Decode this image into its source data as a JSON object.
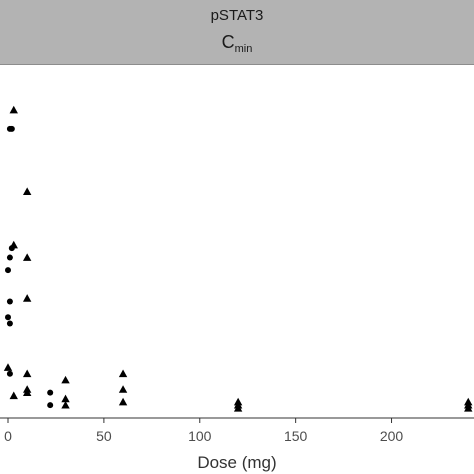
{
  "chart_data": {
    "type": "scatter",
    "strip": {
      "title": "pSTAT3",
      "subtitle_main": "C",
      "subtitle_sub": "min"
    },
    "xlabel": "Dose (mg)",
    "ylabel": "",
    "x_ticks": [
      0,
      50,
      100,
      150,
      200
    ],
    "xlim": [
      -2,
      240
    ],
    "ylim": [
      0,
      100
    ],
    "grid": false,
    "colors": {
      "strip_bg": "#b3b3b3",
      "marker": "#000000",
      "axis": "#333333"
    },
    "series": [
      {
        "marker": "triangle",
        "points": [
          {
            "x": 3,
            "y": 93
          },
          {
            "x": 10,
            "y": 67
          },
          {
            "x": 3,
            "y": 50
          },
          {
            "x": 10,
            "y": 46
          },
          {
            "x": 10,
            "y": 33
          },
          {
            "x": 0,
            "y": 11
          },
          {
            "x": 10,
            "y": 9
          },
          {
            "x": 30,
            "y": 7
          },
          {
            "x": 60,
            "y": 9
          },
          {
            "x": 3,
            "y": 2
          },
          {
            "x": 10,
            "y": 3
          },
          {
            "x": 10,
            "y": 4
          },
          {
            "x": 30,
            "y": 1
          },
          {
            "x": 30,
            "y": -1
          },
          {
            "x": 60,
            "y": 4
          },
          {
            "x": 60,
            "y": 0
          },
          {
            "x": 120,
            "y": 0
          },
          {
            "x": 120,
            "y": -1
          },
          {
            "x": 120,
            "y": -2
          },
          {
            "x": 240,
            "y": 0
          },
          {
            "x": 240,
            "y": -1
          },
          {
            "x": 240,
            "y": -2
          }
        ]
      },
      {
        "marker": "circle",
        "points": [
          {
            "x": 1,
            "y": 87
          },
          {
            "x": 2,
            "y": 87
          },
          {
            "x": 2,
            "y": 49
          },
          {
            "x": 1,
            "y": 46
          },
          {
            "x": 0,
            "y": 42
          },
          {
            "x": 1,
            "y": 32
          },
          {
            "x": 0,
            "y": 27
          },
          {
            "x": 1,
            "y": 25
          },
          {
            "x": 1,
            "y": 9
          },
          {
            "x": 22,
            "y": 3
          },
          {
            "x": 22,
            "y": -1
          }
        ]
      }
    ]
  }
}
